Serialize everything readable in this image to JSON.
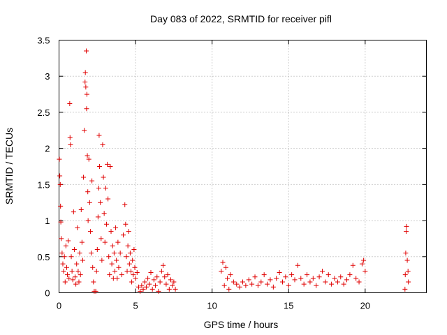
{
  "chart_data": {
    "type": "scatter",
    "title": "Day 083 of 2022, SRMTID for receiver pifl",
    "xlabel": "GPS time / hours",
    "ylabel": "SRMTID / TECUs",
    "xlim": [
      0,
      24
    ],
    "ylim": [
      0,
      3.5
    ],
    "xticks": [
      0,
      5,
      10,
      15,
      20
    ],
    "xtick_labels": [
      "0",
      "5",
      "10",
      "15",
      "20"
    ],
    "yticks": [
      0,
      0.5,
      1,
      1.5,
      2,
      2.5,
      3,
      3.5
    ],
    "ytick_labels": [
      "0",
      "0.5",
      "1",
      "1.5",
      "2",
      "2.5",
      "3",
      "3.5"
    ],
    "grid": true,
    "marker": "+",
    "color": "#e00000",
    "series": [
      {
        "name": "SRMTID",
        "points": [
          [
            0.02,
            1.85
          ],
          [
            0.05,
            1.62
          ],
          [
            0.08,
            1.5
          ],
          [
            0.1,
            1.2
          ],
          [
            0.12,
            0.98
          ],
          [
            0.15,
            0.75
          ],
          [
            0.2,
            0.55
          ],
          [
            0.25,
            0.4
          ],
          [
            0.3,
            0.3
          ],
          [
            0.35,
            0.5
          ],
          [
            0.4,
            0.15
          ],
          [
            0.45,
            0.65
          ],
          [
            0.5,
            0.35
          ],
          [
            0.55,
            0.25
          ],
          [
            0.6,
            0.72
          ],
          [
            0.65,
            0.2
          ],
          [
            0.7,
            2.62
          ],
          [
            0.72,
            2.15
          ],
          [
            0.75,
            2.05
          ],
          [
            0.8,
            0.5
          ],
          [
            0.85,
            0.3
          ],
          [
            0.9,
            0.18
          ],
          [
            0.95,
            1.12
          ],
          [
            1.0,
            0.6
          ],
          [
            1.05,
            0.22
          ],
          [
            1.1,
            0.12
          ],
          [
            1.15,
            0.4
          ],
          [
            1.2,
            0.9
          ],
          [
            1.25,
            0.3
          ],
          [
            1.3,
            0.15
          ],
          [
            1.35,
            0.55
          ],
          [
            1.4,
            0.25
          ],
          [
            1.45,
            1.15
          ],
          [
            1.5,
            0.7
          ],
          [
            1.55,
            0.45
          ],
          [
            1.6,
            1.6
          ],
          [
            1.65,
            2.25
          ],
          [
            1.7,
            2.92
          ],
          [
            1.72,
            3.05
          ],
          [
            1.75,
            2.85
          ],
          [
            1.78,
            3.35
          ],
          [
            1.8,
            2.55
          ],
          [
            1.82,
            2.75
          ],
          [
            1.85,
            1.9
          ],
          [
            1.88,
            1.4
          ],
          [
            1.9,
            1.0
          ],
          [
            1.95,
            1.85
          ],
          [
            2.0,
            1.25
          ],
          [
            2.05,
            0.85
          ],
          [
            2.1,
            0.55
          ],
          [
            2.15,
            1.55
          ],
          [
            2.2,
            0.35
          ],
          [
            2.25,
            0.15
          ],
          [
            2.3,
            0.02
          ],
          [
            2.4,
            0.02
          ],
          [
            2.45,
            0.3
          ],
          [
            2.5,
            0.6
          ],
          [
            2.55,
            1.05
          ],
          [
            2.6,
            1.45
          ],
          [
            2.62,
            2.18
          ],
          [
            2.65,
            1.75
          ],
          [
            2.7,
            1.25
          ],
          [
            2.75,
            0.75
          ],
          [
            2.8,
            0.45
          ],
          [
            2.85,
            2.05
          ],
          [
            2.9,
            1.6
          ],
          [
            2.95,
            1.1
          ],
          [
            3.0,
            0.7
          ],
          [
            3.05,
            1.45
          ],
          [
            3.1,
            0.95
          ],
          [
            3.15,
            1.78
          ],
          [
            3.2,
            1.3
          ],
          [
            3.25,
            0.5
          ],
          [
            3.3,
            0.25
          ],
          [
            3.35,
            1.75
          ],
          [
            3.4,
            0.85
          ],
          [
            3.45,
            0.4
          ],
          [
            3.5,
            0.65
          ],
          [
            3.55,
            0.2
          ],
          [
            3.6,
            0.55
          ],
          [
            3.65,
            0.3
          ],
          [
            3.7,
            0.9
          ],
          [
            3.75,
            0.45
          ],
          [
            3.8,
            0.2
          ],
          [
            3.85,
            0.7
          ],
          [
            3.9,
            0.35
          ],
          [
            4.0,
            0.55
          ],
          [
            4.1,
            0.25
          ],
          [
            4.2,
            0.8
          ],
          [
            4.3,
            1.22
          ],
          [
            4.35,
            0.95
          ],
          [
            4.4,
            0.5
          ],
          [
            4.45,
            0.3
          ],
          [
            4.5,
            0.65
          ],
          [
            4.55,
            0.85
          ],
          [
            4.6,
            0.4
          ],
          [
            4.65,
            0.55
          ],
          [
            4.7,
            0.3
          ],
          [
            4.75,
            0.15
          ],
          [
            4.8,
            0.45
          ],
          [
            4.85,
            0.25
          ],
          [
            4.9,
            0.6
          ],
          [
            4.95,
            0.35
          ],
          [
            5.0,
            0.2
          ],
          [
            5.1,
            0.28
          ],
          [
            5.2,
            0.08
          ],
          [
            5.3,
            0.02
          ],
          [
            5.4,
            0.1
          ],
          [
            5.5,
            0.05
          ],
          [
            5.6,
            0.15
          ],
          [
            5.7,
            0.08
          ],
          [
            5.8,
            0.2
          ],
          [
            5.9,
            0.12
          ],
          [
            6.0,
            0.28
          ],
          [
            6.1,
            0.05
          ],
          [
            6.2,
            0.18
          ],
          [
            6.3,
            0.1
          ],
          [
            6.4,
            0.22
          ],
          [
            6.5,
            0.02
          ],
          [
            6.6,
            0.15
          ],
          [
            6.7,
            0.3
          ],
          [
            6.8,
            0.38
          ],
          [
            6.9,
            0.22
          ],
          [
            7.0,
            0.12
          ],
          [
            7.1,
            0.25
          ],
          [
            7.2,
            0.05
          ],
          [
            7.3,
            0.18
          ],
          [
            7.4,
            0.1
          ],
          [
            7.5,
            0.15
          ],
          [
            7.6,
            0.05
          ],
          [
            10.6,
            0.3
          ],
          [
            10.7,
            0.42
          ],
          [
            10.8,
            0.1
          ],
          [
            10.9,
            0.35
          ],
          [
            11.0,
            0.2
          ],
          [
            11.1,
            0.05
          ],
          [
            11.2,
            0.25
          ],
          [
            11.4,
            0.15
          ],
          [
            11.6,
            0.12
          ],
          [
            11.8,
            0.08
          ],
          [
            12.0,
            0.15
          ],
          [
            12.2,
            0.1
          ],
          [
            12.4,
            0.18
          ],
          [
            12.6,
            0.12
          ],
          [
            12.8,
            0.22
          ],
          [
            13.0,
            0.1
          ],
          [
            13.2,
            0.15
          ],
          [
            13.4,
            0.25
          ],
          [
            13.6,
            0.12
          ],
          [
            13.8,
            0.18
          ],
          [
            14.0,
            0.08
          ],
          [
            14.2,
            0.2
          ],
          [
            14.4,
            0.28
          ],
          [
            14.6,
            0.15
          ],
          [
            14.8,
            0.22
          ],
          [
            15.0,
            0.1
          ],
          [
            15.2,
            0.25
          ],
          [
            15.4,
            0.18
          ],
          [
            15.6,
            0.38
          ],
          [
            15.8,
            0.2
          ],
          [
            16.0,
            0.12
          ],
          [
            16.2,
            0.25
          ],
          [
            16.4,
            0.15
          ],
          [
            16.6,
            0.2
          ],
          [
            16.8,
            0.1
          ],
          [
            17.0,
            0.22
          ],
          [
            17.2,
            0.3
          ],
          [
            17.4,
            0.15
          ],
          [
            17.6,
            0.25
          ],
          [
            17.8,
            0.12
          ],
          [
            18.0,
            0.2
          ],
          [
            18.2,
            0.15
          ],
          [
            18.4,
            0.22
          ],
          [
            18.6,
            0.12
          ],
          [
            18.8,
            0.18
          ],
          [
            19.0,
            0.25
          ],
          [
            19.2,
            0.38
          ],
          [
            19.4,
            0.2
          ],
          [
            19.6,
            0.15
          ],
          [
            19.8,
            0.4
          ],
          [
            19.9,
            0.45
          ],
          [
            20.0,
            0.3
          ],
          [
            22.6,
            0.05
          ],
          [
            22.62,
            0.25
          ],
          [
            22.65,
            0.55
          ],
          [
            22.68,
            0.85
          ],
          [
            22.7,
            0.92
          ],
          [
            22.75,
            0.45
          ],
          [
            22.8,
            0.3
          ],
          [
            22.82,
            0.15
          ]
        ]
      }
    ]
  }
}
